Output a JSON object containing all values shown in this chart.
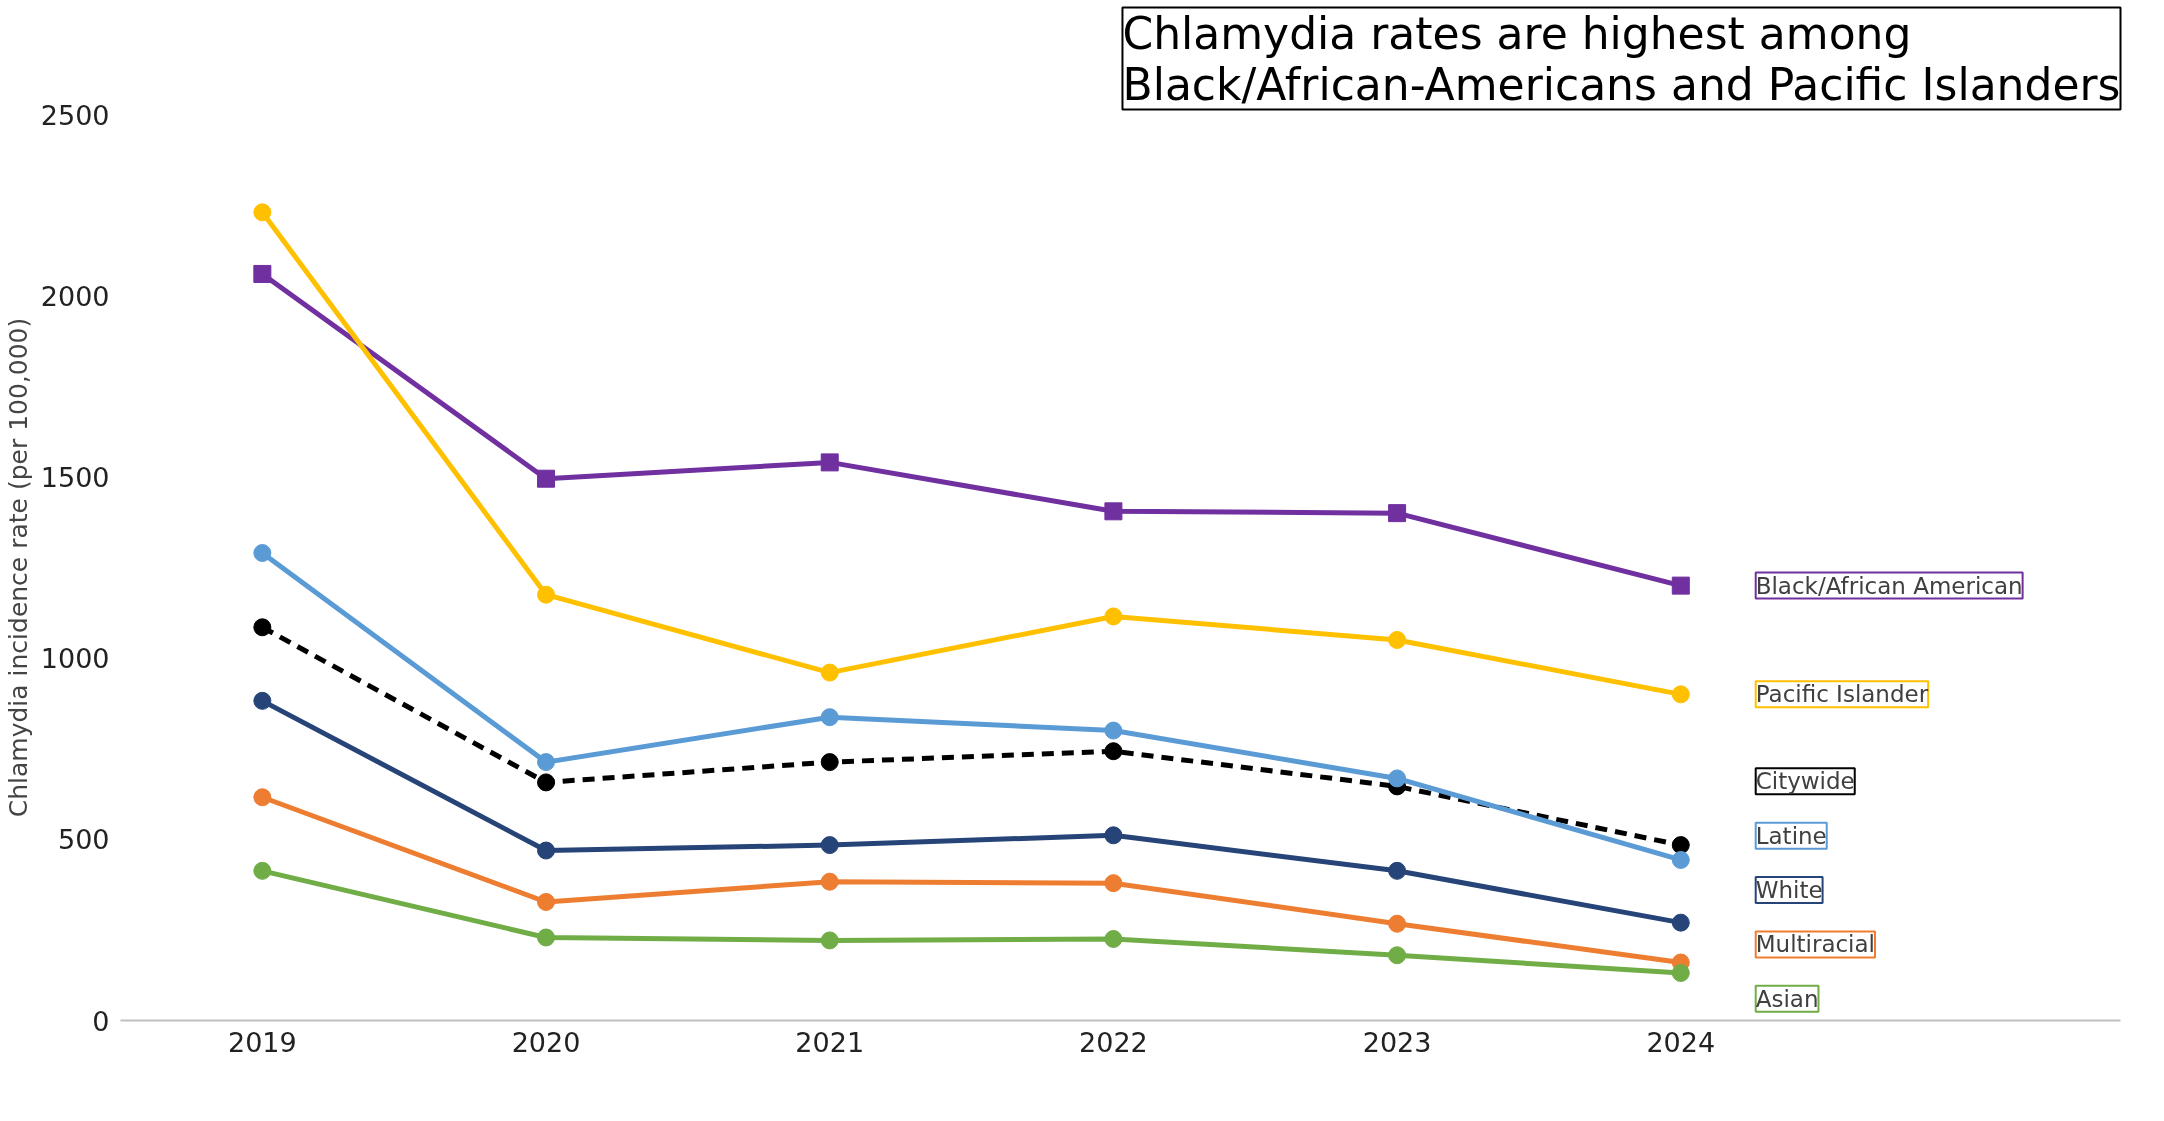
{
  "chart_data": {
    "type": "line",
    "ylabel": "Chlamydia incidence rate (per 100,000)",
    "annotations": [
      "Chlamydia rates are highest among\nBlack/African-Americans and Pacific Islanders"
    ],
    "categories": [
      "2019",
      "2020",
      "2021",
      "2022",
      "2023",
      "2024"
    ],
    "series": [
      {
        "name": "Black/African American",
        "color": "#7030a0",
        "marker": "square",
        "values": [
          2060,
          1495,
          1540,
          1405,
          1400,
          1200
        ]
      },
      {
        "name": "Pacific Islander",
        "color": "#ffc000",
        "values": [
          2230,
          1175,
          960,
          1115,
          1050,
          900
        ]
      },
      {
        "name": "Citywide",
        "color": "#000000",
        "line_style": "dashed",
        "values": [
          1085,
          657,
          713,
          743,
          646,
          484
        ]
      },
      {
        "name": "Latine",
        "color": "#5b9bd5",
        "values": [
          1290,
          713,
          837,
          800,
          668,
          443
        ]
      },
      {
        "name": "White",
        "color": "#264478",
        "values": [
          882,
          469,
          484,
          511,
          413,
          270
        ]
      },
      {
        "name": "Multiracial",
        "color": "#ed7d31",
        "values": [
          616,
          327,
          383,
          379,
          267,
          160
        ]
      },
      {
        "name": "Asian",
        "color": "#70ad47",
        "values": [
          413,
          229,
          221,
          225,
          180,
          131
        ]
      }
    ],
    "marker": "circle",
    "line_style": "solid",
    "grid": false,
    "legend": "right",
    "ylim": [
      0,
      2500
    ],
    "yticks": [
      0,
      500,
      1000,
      1500,
      2000,
      2500
    ]
  }
}
